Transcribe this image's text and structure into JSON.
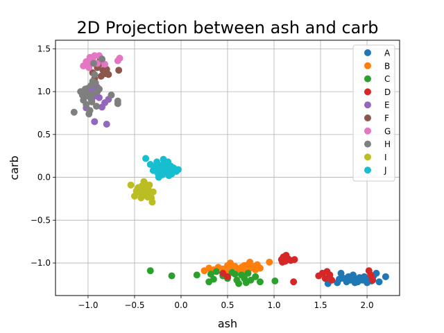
{
  "chart_data": {
    "type": "scatter",
    "title": "2D Projection between ash and carb",
    "xlabel": "ash",
    "ylabel": "carb",
    "xlim": [
      -1.35,
      2.35
    ],
    "ylim": [
      -1.38,
      1.6
    ],
    "xticks": [
      -1.0,
      -0.5,
      0.0,
      0.5,
      1.0,
      1.5,
      2.0
    ],
    "xtick_labels": [
      "−1.0",
      "−0.5",
      "0.0",
      "0.5",
      "1.0",
      "1.5",
      "2.0"
    ],
    "yticks": [
      -1.0,
      -0.5,
      0.0,
      0.5,
      1.0,
      1.5
    ],
    "ytick_labels": [
      "−1.0",
      "−0.5",
      "0.0",
      "0.5",
      "1.0",
      "1.5"
    ],
    "grid": true,
    "legend_position": "top-right",
    "series": [
      {
        "name": "A",
        "color": "#1f77b4",
        "points": [
          [
            1.58,
            -1.24
          ],
          [
            1.7,
            -1.19
          ],
          [
            1.72,
            -1.12
          ],
          [
            1.75,
            -1.18
          ],
          [
            1.78,
            -1.22
          ],
          [
            1.8,
            -1.16
          ],
          [
            1.82,
            -1.2
          ],
          [
            1.85,
            -1.14
          ],
          [
            1.88,
            -1.19
          ],
          [
            1.9,
            -1.22
          ],
          [
            1.92,
            -1.17
          ],
          [
            1.95,
            -1.2
          ],
          [
            1.97,
            -1.16
          ],
          [
            2.0,
            -1.23
          ],
          [
            2.02,
            -1.18
          ],
          [
            2.05,
            -1.21
          ],
          [
            2.07,
            -1.15
          ],
          [
            2.1,
            -1.12
          ],
          [
            2.13,
            -1.22
          ],
          [
            2.2,
            -1.16
          ],
          [
            1.68,
            -1.23
          ],
          [
            1.87,
            -1.23
          ]
        ]
      },
      {
        "name": "B",
        "color": "#ff7f0e",
        "points": [
          [
            0.25,
            -1.09
          ],
          [
            0.3,
            -1.06
          ],
          [
            0.35,
            -1.08
          ],
          [
            0.4,
            -1.05
          ],
          [
            0.45,
            -1.07
          ],
          [
            0.5,
            -1.03
          ],
          [
            0.52,
            -1.09
          ],
          [
            0.55,
            -1.06
          ],
          [
            0.58,
            -1.04
          ],
          [
            0.62,
            -1.08
          ],
          [
            0.65,
            -1.05
          ],
          [
            0.68,
            -1.03
          ],
          [
            0.7,
            -1.1
          ],
          [
            0.72,
            -1.02
          ],
          [
            0.75,
            -1.06
          ],
          [
            0.78,
            -1.04
          ],
          [
            0.8,
            -1.08
          ],
          [
            0.82,
            -1.02
          ],
          [
            0.85,
            -1.06
          ],
          [
            0.95,
            -0.99
          ],
          [
            0.53,
            -1.0
          ],
          [
            0.74,
            -0.99
          ],
          [
            0.47,
            -1.12
          ],
          [
            0.66,
            -1.13
          ]
        ]
      },
      {
        "name": "C",
        "color": "#2ca02c",
        "points": [
          [
            -0.33,
            -1.09
          ],
          [
            -0.1,
            -1.15
          ],
          [
            0.17,
            -1.14
          ],
          [
            0.3,
            -1.22
          ],
          [
            0.32,
            -1.13
          ],
          [
            0.35,
            -1.19
          ],
          [
            0.38,
            -1.1
          ],
          [
            0.45,
            -1.15
          ],
          [
            0.5,
            -1.18
          ],
          [
            0.55,
            -1.11
          ],
          [
            0.6,
            -1.2
          ],
          [
            0.62,
            -1.24
          ],
          [
            0.65,
            -1.14
          ],
          [
            0.68,
            -1.18
          ],
          [
            0.72,
            -1.12
          ],
          [
            0.75,
            -1.2
          ],
          [
            0.8,
            -1.16
          ],
          [
            0.85,
            -1.22
          ],
          [
            1.01,
            -1.21
          ],
          [
            0.58,
            -1.13
          ],
          [
            0.7,
            -1.23
          ]
        ]
      },
      {
        "name": "D",
        "color": "#d62728",
        "points": [
          [
            1.08,
            -0.96
          ],
          [
            1.1,
            -0.93
          ],
          [
            1.12,
            -0.98
          ],
          [
            1.13,
            -0.91
          ],
          [
            1.15,
            -0.95
          ],
          [
            1.18,
            -0.97
          ],
          [
            1.22,
            -0.96
          ],
          [
            1.12,
            -0.95
          ],
          [
            1.09,
            -0.99
          ],
          [
            1.21,
            -1.22
          ],
          [
            1.48,
            -1.15
          ],
          [
            1.52,
            -1.12
          ],
          [
            1.55,
            -1.18
          ],
          [
            1.57,
            -1.1
          ],
          [
            1.6,
            -1.14
          ],
          [
            1.62,
            -1.2
          ],
          [
            2.02,
            -1.09
          ],
          [
            2.04,
            -1.14
          ],
          [
            2.06,
            -1.2
          ],
          [
            0.5,
            -1.16
          ],
          [
            0.45,
            -1.12
          ]
        ]
      },
      {
        "name": "E",
        "color": "#9467bd",
        "points": [
          [
            -1.0,
            1.04
          ],
          [
            -0.98,
            0.98
          ],
          [
            -0.95,
            1.02
          ],
          [
            -0.93,
            0.65
          ],
          [
            -0.9,
            1.05
          ],
          [
            -0.88,
            0.93
          ],
          [
            -0.85,
            0.82
          ],
          [
            -0.82,
            0.87
          ],
          [
            -0.8,
            0.62
          ],
          [
            -0.78,
            0.91
          ],
          [
            -0.96,
            0.9
          ],
          [
            -0.92,
            0.95
          ],
          [
            -1.02,
            0.81
          ]
        ]
      },
      {
        "name": "F",
        "color": "#8c564b",
        "points": [
          [
            -0.95,
            1.22
          ],
          [
            -0.92,
            1.1
          ],
          [
            -0.9,
            1.28
          ],
          [
            -0.88,
            1.32
          ],
          [
            -0.86,
            1.18
          ],
          [
            -0.84,
            1.25
          ],
          [
            -0.82,
            1.21
          ],
          [
            -0.8,
            1.26
          ],
          [
            -0.78,
            1.2
          ],
          [
            -0.67,
            1.25
          ],
          [
            -0.93,
            1.15
          ],
          [
            -0.87,
            1.37
          ]
        ]
      },
      {
        "name": "G",
        "color": "#e377c2",
        "points": [
          [
            -1.05,
            1.3
          ],
          [
            -1.02,
            1.35
          ],
          [
            -1.0,
            1.32
          ],
          [
            -0.98,
            1.4
          ],
          [
            -0.95,
            1.36
          ],
          [
            -0.93,
            1.42
          ],
          [
            -0.9,
            1.33
          ],
          [
            -0.88,
            1.42
          ],
          [
            -0.85,
            1.37
          ],
          [
            -0.82,
            1.32
          ],
          [
            -0.68,
            1.36
          ],
          [
            -0.66,
            1.39
          ],
          [
            -0.99,
            1.28
          ]
        ]
      },
      {
        "name": "H",
        "color": "#7f7f7f",
        "points": [
          [
            -1.15,
            0.76
          ],
          [
            -1.08,
            1.0
          ],
          [
            -1.05,
            0.9
          ],
          [
            -1.03,
            1.03
          ],
          [
            -1.02,
            0.85
          ],
          [
            -1.0,
            0.95
          ],
          [
            -0.99,
            0.74
          ],
          [
            -0.98,
            0.78
          ],
          [
            -0.97,
            1.07
          ],
          [
            -0.96,
            0.88
          ],
          [
            -0.95,
            0.97
          ],
          [
            -0.94,
            1.33
          ],
          [
            -0.93,
            1.2
          ],
          [
            -0.92,
            1.1
          ],
          [
            -0.91,
            0.83
          ],
          [
            -0.9,
            1.0
          ],
          [
            -0.88,
            1.03
          ],
          [
            -0.85,
            1.38
          ],
          [
            -0.75,
            0.96
          ],
          [
            -0.68,
            0.89
          ],
          [
            -0.68,
            0.86
          ],
          [
            -1.02,
            0.99
          ],
          [
            -0.97,
            0.92
          ],
          [
            -1.06,
            0.96
          ],
          [
            -0.95,
            1.12
          ]
        ]
      },
      {
        "name": "I",
        "color": "#bcbd22",
        "points": [
          [
            -0.54,
            -0.09
          ],
          [
            -0.5,
            -0.22
          ],
          [
            -0.48,
            -0.16
          ],
          [
            -0.46,
            -0.12
          ],
          [
            -0.44,
            -0.18
          ],
          [
            -0.43,
            -0.24
          ],
          [
            -0.42,
            -0.1
          ],
          [
            -0.41,
            -0.21
          ],
          [
            -0.4,
            -0.14
          ],
          [
            -0.39,
            -0.07
          ],
          [
            -0.38,
            -0.19
          ],
          [
            -0.37,
            -0.11
          ],
          [
            -0.36,
            -0.23
          ],
          [
            -0.35,
            -0.15
          ],
          [
            -0.34,
            -0.09
          ],
          [
            -0.33,
            -0.2
          ],
          [
            -0.32,
            -0.24
          ],
          [
            -0.31,
            -0.29
          ],
          [
            -0.3,
            -0.17
          ],
          [
            -0.45,
            -0.13
          ],
          [
            -0.4,
            -0.05
          ]
        ]
      },
      {
        "name": "J",
        "color": "#17becf",
        "points": [
          [
            -0.38,
            0.22
          ],
          [
            -0.33,
            0.15
          ],
          [
            -0.3,
            0.08
          ],
          [
            -0.28,
            0.12
          ],
          [
            -0.26,
            0.18
          ],
          [
            -0.25,
            0.05
          ],
          [
            -0.23,
            0.1
          ],
          [
            -0.22,
            0.14
          ],
          [
            -0.2,
            0.03
          ],
          [
            -0.19,
            0.21
          ],
          [
            -0.18,
            0.09
          ],
          [
            -0.17,
            0.12
          ],
          [
            -0.15,
            0.06
          ],
          [
            -0.14,
            0.18
          ],
          [
            -0.13,
            0.02
          ],
          [
            -0.12,
            0.1
          ],
          [
            -0.11,
            0.13
          ],
          [
            -0.1,
            0.04
          ],
          [
            -0.08,
            0.11
          ],
          [
            -0.05,
            0.07
          ],
          [
            -0.03,
            0.09
          ],
          [
            -0.24,
            0.0
          ],
          [
            -0.16,
            0.15
          ],
          [
            -0.21,
            0.07
          ]
        ]
      }
    ]
  }
}
